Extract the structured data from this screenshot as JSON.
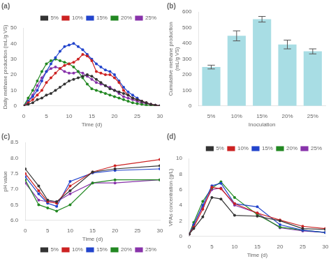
{
  "chart_data": [
    {
      "type": "line",
      "title": "(a)",
      "xlabel": "Time (d)",
      "ylabel": "Daily methane production (mL/g VS)",
      "x": [
        0,
        1,
        2,
        3,
        4,
        5,
        6,
        7,
        8,
        9,
        10,
        11,
        12,
        13,
        14,
        15,
        16,
        17,
        18,
        19,
        20,
        21,
        22,
        23,
        24,
        25,
        26,
        27,
        28,
        29,
        30
      ],
      "series": [
        {
          "name": "5%",
          "color": "#333333",
          "values": [
            0,
            1,
            2,
            4,
            5,
            7,
            8,
            10,
            12,
            14,
            16,
            17,
            18,
            19,
            20,
            19,
            17,
            15,
            13,
            11,
            10,
            9,
            8,
            7,
            5,
            4,
            3,
            2,
            1,
            0.5,
            0
          ]
        },
        {
          "name": "10%",
          "color": "#cc2222",
          "values": [
            0,
            2,
            4,
            7,
            10,
            15,
            18,
            21,
            24,
            26,
            27,
            28,
            30,
            33,
            32,
            29,
            22,
            21,
            20,
            20,
            18,
            15,
            10,
            7,
            5,
            4,
            3,
            2,
            1,
            0.5,
            0
          ]
        },
        {
          "name": "15%",
          "color": "#2244cc",
          "values": [
            0,
            3,
            6,
            10,
            16,
            22,
            27,
            31,
            35,
            38,
            39,
            40,
            38,
            36,
            33,
            30,
            27,
            25,
            23,
            22,
            20,
            16,
            12,
            9,
            7,
            5,
            3,
            2,
            1,
            0.5,
            0
          ]
        },
        {
          "name": "20%",
          "color": "#228822",
          "values": [
            0,
            5,
            10,
            16,
            22,
            27,
            29,
            30,
            29,
            28,
            27,
            25,
            22,
            18,
            14,
            11,
            10,
            9,
            8,
            7,
            6,
            5,
            4,
            3,
            2,
            1.5,
            1,
            0.5,
            0.2,
            0.1,
            0
          ]
        },
        {
          "name": "25%",
          "color": "#8833aa",
          "values": [
            0,
            3,
            7,
            13,
            18,
            22,
            24,
            25,
            24,
            22,
            21,
            21,
            22,
            21,
            19,
            17,
            15,
            14,
            13,
            12,
            10,
            8,
            6,
            5,
            4,
            3,
            2,
            1.5,
            1,
            0.5,
            0
          ]
        }
      ],
      "xlim": [
        0,
        30
      ],
      "xticks": [
        0,
        5,
        10,
        15,
        20,
        25,
        30
      ],
      "ylim": [
        0,
        50
      ],
      "yticks": [
        0,
        10,
        20,
        30,
        40,
        50
      ],
      "grid": false,
      "legend": "upper right",
      "marker": "circle"
    },
    {
      "type": "bar",
      "title": "(b)",
      "xlabel": "Inoculation",
      "ylabel": "Cumulative methane production\n(mL/g VS)",
      "categories": [
        "5%",
        "10%",
        "15%",
        "20%",
        "25%"
      ],
      "values": [
        248,
        447,
        553,
        392,
        348
      ],
      "errors": [
        12,
        32,
        18,
        28,
        16
      ],
      "color": "#a8dde4",
      "ylim": [
        0,
        600
      ],
      "yticks": [
        0,
        100,
        200,
        300,
        400,
        500,
        600
      ],
      "grid": false
    },
    {
      "type": "line",
      "title": "(c)",
      "xlabel": "Time (d)",
      "ylabel": "pH value",
      "x": [
        0,
        3,
        5,
        7,
        10,
        15,
        20,
        30
      ],
      "series": [
        {
          "name": "5%",
          "color": "#333333",
          "values": [
            7.65,
            7.1,
            6.65,
            6.6,
            6.95,
            7.55,
            7.65,
            7.75
          ]
        },
        {
          "name": "10%",
          "color": "#cc2222",
          "values": [
            7.5,
            6.95,
            6.6,
            6.55,
            7.1,
            7.55,
            7.75,
            7.95
          ]
        },
        {
          "name": "15%",
          "color": "#2244cc",
          "values": [
            7.4,
            6.85,
            6.55,
            6.45,
            7.25,
            7.52,
            7.6,
            7.65
          ]
        },
        {
          "name": "20%",
          "color": "#228822",
          "values": [
            7.3,
            6.5,
            6.4,
            6.3,
            6.5,
            7.2,
            7.3,
            7.3
          ]
        },
        {
          "name": "25%",
          "color": "#8833aa",
          "values": [
            7.2,
            6.65,
            6.6,
            6.6,
            6.85,
            7.2,
            7.2,
            7.3
          ]
        }
      ],
      "xlim": [
        0,
        30
      ],
      "xticks": [
        0,
        5,
        10,
        15,
        20,
        25,
        30
      ],
      "ylim": [
        6.0,
        8.5
      ],
      "yticks": [
        {
          "value": 6,
          "label": "6.0"
        },
        6.5,
        {
          "value": 7,
          "label": "7.0"
        },
        7.5,
        {
          "value": 8,
          "label": "8.0"
        },
        8.5
      ],
      "grid": false,
      "legend": "lower right",
      "marker": "circle"
    },
    {
      "type": "line",
      "title": "(d)",
      "xlabel": "Time (d)",
      "ylabel": "VFAs concentration (g/L)",
      "x": [
        0,
        1,
        3,
        5,
        7,
        10,
        15,
        20,
        25,
        30
      ],
      "series": [
        {
          "name": "5%",
          "color": "#333333",
          "values": [
            0.3,
            1.0,
            2.5,
            5.0,
            4.8,
            2.7,
            2.6,
            2.0,
            1.0,
            0.9
          ]
        },
        {
          "name": "10%",
          "color": "#cc2222",
          "values": [
            0.3,
            1.2,
            3.5,
            6.3,
            6.1,
            4.2,
            3.0,
            2.1,
            1.3,
            1.0
          ]
        },
        {
          "name": "15%",
          "color": "#2244cc",
          "values": [
            0.3,
            1.5,
            4.0,
            6.5,
            6.8,
            4.2,
            3.8,
            1.5,
            0.8,
            0.5
          ]
        },
        {
          "name": "20%",
          "color": "#228822",
          "values": [
            0.3,
            1.8,
            4.5,
            6.2,
            7.0,
            5.0,
            2.8,
            1.2,
            0.8,
            0.5
          ]
        },
        {
          "name": "25%",
          "color": "#8833aa",
          "values": [
            0.3,
            1.5,
            3.8,
            6.0,
            6.2,
            4.0,
            3.0,
            1.1,
            0.7,
            0.5
          ]
        }
      ],
      "xlim": [
        0,
        30
      ],
      "xticks": [
        0,
        5,
        10,
        15,
        20,
        25,
        30
      ],
      "ylim": [
        0,
        10
      ],
      "yticks": [
        0,
        2,
        4,
        6,
        8,
        10
      ],
      "grid": false,
      "legend": "upper right",
      "marker": "circle"
    }
  ]
}
